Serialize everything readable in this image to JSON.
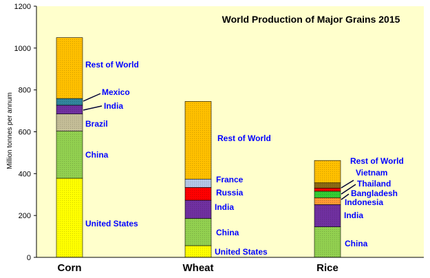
{
  "chart_data": {
    "type": "bar",
    "stacked": true,
    "title": "World Production of Major Grains 2015",
    "ylabel": "Million tonnes per annum",
    "xlabel": "",
    "ylim": [
      0,
      1200
    ],
    "yticks": [
      0,
      200,
      400,
      600,
      800,
      1000,
      1200
    ],
    "grid": false,
    "plot_background": "#FFFFCC",
    "categories": [
      "Corn",
      "Wheat",
      "Rice"
    ],
    "bars": [
      {
        "category": "Corn",
        "segments": [
          {
            "label": "United States",
            "value": 378,
            "color": "#FFFF00",
            "pattern": "dots"
          },
          {
            "label": "China",
            "value": 225,
            "color": "#92D050",
            "pattern": "dots"
          },
          {
            "label": "Brazil",
            "value": 82,
            "color": "#C4BD97",
            "pattern": "dots"
          },
          {
            "label": "India",
            "value": 42,
            "color": "#7030A0",
            "pattern": "dots"
          },
          {
            "label": "Mexico",
            "value": 32,
            "color": "#31859C",
            "pattern": "dots"
          },
          {
            "label": "Rest of World",
            "value": 291,
            "color": "#FFC000",
            "pattern": "dots"
          }
        ]
      },
      {
        "category": "Wheat",
        "segments": [
          {
            "label": "United States",
            "value": 56,
            "color": "#FFFF00",
            "pattern": "dots"
          },
          {
            "label": "China",
            "value": 130,
            "color": "#92D050",
            "pattern": "dots"
          },
          {
            "label": "India",
            "value": 87,
            "color": "#7030A0",
            "pattern": "dots"
          },
          {
            "label": "Russia",
            "value": 61,
            "color": "#FF0000",
            "pattern": "dots"
          },
          {
            "label": "France",
            "value": 40,
            "color": "#B4C7E7",
            "pattern": "dots"
          },
          {
            "label": "Rest of World",
            "value": 371,
            "color": "#FFC000",
            "pattern": "dots"
          }
        ]
      },
      {
        "category": "Rice",
        "segments": [
          {
            "label": "China",
            "value": 146,
            "color": "#92D050",
            "pattern": "dots"
          },
          {
            "label": "India",
            "value": 106,
            "color": "#7030A0",
            "pattern": "dots"
          },
          {
            "label": "Indonesia",
            "value": 33,
            "color": "#FF9933",
            "pattern": "dots"
          },
          {
            "label": "Bangladesh",
            "value": 31,
            "color": "#33CC33",
            "pattern": "dots"
          },
          {
            "label": "Thailand",
            "value": 15,
            "color": "#FF0000",
            "pattern": "dots"
          },
          {
            "label": "Vietnam",
            "value": 25,
            "color": "#8B6914",
            "pattern": "dots"
          },
          {
            "label": "Rest of World",
            "value": 107,
            "color": "#FFC000",
            "pattern": "dots"
          }
        ]
      }
    ],
    "label_color": "#0000FF"
  }
}
